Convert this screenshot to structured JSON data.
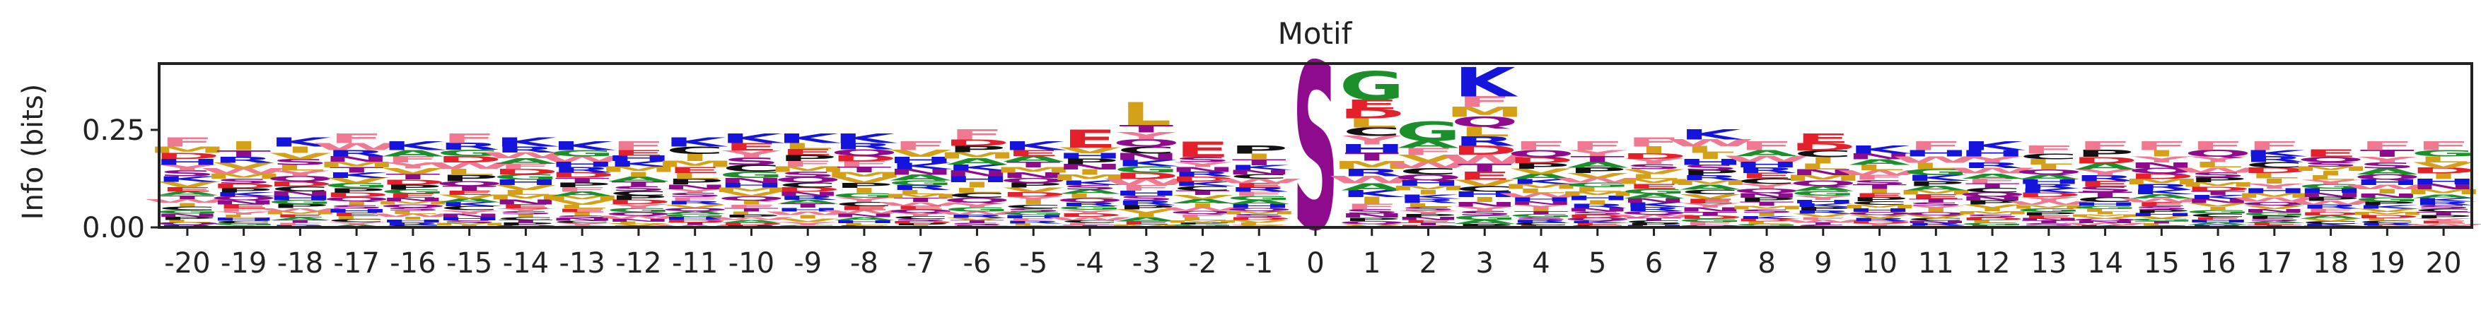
{
  "chart_data": {
    "type": "sequence-logo",
    "title": "Motif",
    "xlabel": "",
    "ylabel": "Info (bits)",
    "ylim": [
      0,
      0.42
    ],
    "yticks": [
      {
        "value": 0.0,
        "label": "0.00"
      },
      {
        "value": 0.25,
        "label": "0.25"
      }
    ],
    "grid": false,
    "positions": [
      "-20",
      "-19",
      "-18",
      "-17",
      "-16",
      "-15",
      "-14",
      "-13",
      "-12",
      "-11",
      "-10",
      "-9",
      "-8",
      "-7",
      "-6",
      "-5",
      "-4",
      "-3",
      "-2",
      "-1",
      "0",
      "1",
      "2",
      "3",
      "4",
      "5",
      "6",
      "7",
      "8",
      "9",
      "10",
      "11",
      "12",
      "13",
      "14",
      "15",
      "16",
      "17",
      "18",
      "19",
      "20"
    ],
    "info_bits": [
      0.23,
      0.22,
      0.23,
      0.24,
      0.22,
      0.24,
      0.23,
      0.22,
      0.22,
      0.23,
      0.24,
      0.24,
      0.24,
      0.22,
      0.25,
      0.22,
      0.25,
      0.32,
      0.22,
      0.21,
      0.42,
      0.4,
      0.27,
      0.41,
      0.22,
      0.22,
      0.23,
      0.25,
      0.22,
      0.24,
      0.21,
      0.22,
      0.22,
      0.21,
      0.22,
      0.22,
      0.22,
      0.22,
      0.2,
      0.22,
      0.22
    ],
    "top_letters": [
      "F",
      "I",
      "K",
      "F",
      "K",
      "F",
      "K",
      "K",
      "F",
      "K",
      "K",
      "K",
      "K",
      "F",
      "F",
      "K",
      "E",
      "L",
      "E",
      "P",
      "S",
      "G",
      "G",
      "K",
      "F",
      "F",
      "F",
      "K",
      "F",
      "E",
      "K",
      "F",
      "K",
      "F",
      "F",
      "F",
      "F",
      "F",
      "E",
      "F",
      "F"
    ],
    "center_letter": "S",
    "letter_colors": {
      "A": "#1b8f2a",
      "G": "#1b8f2a",
      "K": "#1414dc",
      "R": "#1414dc",
      "H": "#1414dc",
      "E": "#e4202a",
      "D": "#e4202a",
      "F": "#f07890",
      "W": "#f07890",
      "Y": "#f07890",
      "L": "#d4a017",
      "I": "#d4a017",
      "V": "#d4a017",
      "M": "#d4a017",
      "S": "#8e0b8e",
      "T": "#8e0b8e",
      "N": "#8e0b8e",
      "Q": "#8e0b8e",
      "P": "#111111",
      "C": "#111111"
    }
  }
}
